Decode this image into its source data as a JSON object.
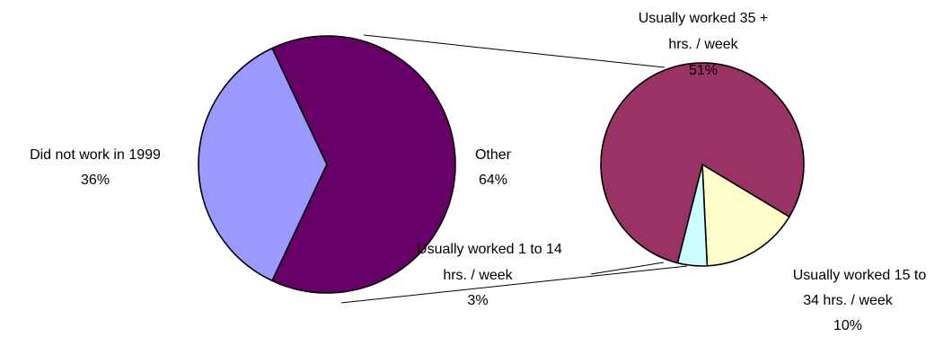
{
  "chart_data": {
    "type": "pie",
    "title": "",
    "main_pie": {
      "slices": [
        {
          "label": "Did not work in 1999",
          "pct_label": "36%",
          "value": 36,
          "color": "#9999ff"
        },
        {
          "label": "Other",
          "pct_label": "64%",
          "value": 64,
          "color": "#660066"
        }
      ]
    },
    "detail_pie": {
      "breakdown_of": "Other",
      "slices": [
        {
          "label_lines": [
            "Usually worked 35 +",
            "hrs. / week"
          ],
          "pct_label": "51%",
          "value": 51,
          "color": "#993366"
        },
        {
          "label_lines": [
            "Usually worked 15 to",
            "34 hrs. / week"
          ],
          "pct_label": "10%",
          "value": 10,
          "color": "#ffffcc"
        },
        {
          "label_lines": [
            "Usually worked 1 to 14",
            "hrs. / week"
          ],
          "pct_label": "3%",
          "value": 3,
          "color": "#ccffff"
        }
      ]
    },
    "legend": "none",
    "grid": false
  }
}
